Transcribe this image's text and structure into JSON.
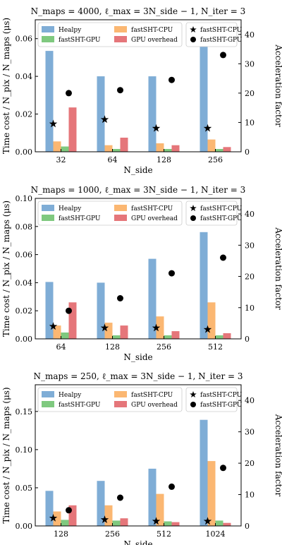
{
  "colors": {
    "healpy": "#7fadd6",
    "fastsht_cpu": "#fbb772",
    "fastsht_gpu": "#7fc97f",
    "gpu_overhead": "#e5767a",
    "marker": "#000000"
  },
  "chart_data": [
    {
      "type": "bar",
      "title": "N_maps = 4000, ℓ_max = 3N_side − 1, N_iter = 3",
      "xlabel": "N_side",
      "ylabel": "Time cost / N_pix / N_maps (μs)",
      "y2label": "Acceleration factor",
      "categories": [
        "32",
        "64",
        "128",
        "256"
      ],
      "ylim": [
        0,
        0.07
      ],
      "yticks": [
        "0.00",
        "0.02",
        "0.04",
        "0.06"
      ],
      "y2lim": [
        0,
        45
      ],
      "y2ticks": [
        "0",
        "10",
        "20",
        "30",
        "40"
      ],
      "series": [
        {
          "name": "Healpy",
          "values": [
            0.0535,
            0.04,
            0.04,
            0.057
          ]
        },
        {
          "name": "fastSHT-CPU",
          "values": [
            0.0055,
            0.0035,
            0.0045,
            0.0065
          ]
        },
        {
          "name": "fastSHT-GPU",
          "values": [
            0.0028,
            0.0015,
            0.0015,
            0.0015
          ]
        },
        {
          "name": "GPU overhead",
          "values": [
            0.0235,
            0.0075,
            0.0035,
            0.0025
          ]
        }
      ],
      "markers": [
        {
          "name": "fastSHT-CPU",
          "symbol": "star",
          "values": [
            9.5,
            11,
            8,
            8
          ]
        },
        {
          "name": "fastSHT-GPU",
          "symbol": "circle",
          "values": [
            20,
            21,
            24.5,
            33
          ]
        }
      ],
      "grid": false,
      "legend": "top"
    },
    {
      "type": "bar",
      "title": "N_maps = 1000, ℓ_max = 3N_side − 1, N_iter = 3",
      "xlabel": "N_side",
      "ylabel": "Time cost / N_pix / N_maps (μs)",
      "y2label": "Acceleration factor",
      "categories": [
        "64",
        "128",
        "256",
        "512"
      ],
      "ylim": [
        0,
        0.1
      ],
      "yticks": [
        "0.00",
        "0.02",
        "0.04",
        "0.06",
        "0.08",
        "0.10"
      ],
      "y2lim": [
        0,
        45
      ],
      "y2ticks": [
        "0",
        "10",
        "20",
        "30",
        "40"
      ],
      "series": [
        {
          "name": "Healpy",
          "values": [
            0.0405,
            0.04,
            0.057,
            0.076
          ]
        },
        {
          "name": "fastSHT-CPU",
          "values": [
            0.0095,
            0.0115,
            0.016,
            0.026
          ]
        },
        {
          "name": "fastSHT-GPU",
          "values": [
            0.0045,
            0.0025,
            0.0025,
            0.0025
          ]
        },
        {
          "name": "GPU overhead",
          "values": [
            0.026,
            0.0095,
            0.0055,
            0.004
          ]
        }
      ],
      "markers": [
        {
          "name": "fastSHT-CPU",
          "symbol": "star",
          "values": [
            4,
            3.5,
            3.5,
            3
          ]
        },
        {
          "name": "fastSHT-GPU",
          "symbol": "circle",
          "values": [
            9,
            13,
            21,
            26
          ]
        }
      ],
      "grid": false,
      "legend": "top"
    },
    {
      "type": "bar",
      "title": "N_maps = 250, ℓ_max = 3N_side − 1, N_iter = 3",
      "xlabel": "N_side",
      "ylabel": "Time cost / N_pix / N_maps (μs)",
      "y2label": "Acceleration factor",
      "categories": [
        "128",
        "256",
        "512",
        "1024"
      ],
      "ylim": [
        0,
        0.185
      ],
      "yticks": [
        "0.00",
        "0.05",
        "0.10",
        "0.15"
      ],
      "y2lim": [
        0,
        45
      ],
      "y2ticks": [
        "0",
        "10",
        "20",
        "30",
        "40"
      ],
      "series": [
        {
          "name": "Healpy",
          "values": [
            0.046,
            0.059,
            0.075,
            0.139
          ]
        },
        {
          "name": "fastSHT-CPU",
          "values": [
            0.019,
            0.027,
            0.042,
            0.085
          ]
        },
        {
          "name": "fastSHT-GPU",
          "values": [
            0.008,
            0.007,
            0.006,
            0.007
          ]
        },
        {
          "name": "GPU overhead",
          "values": [
            0.027,
            0.01,
            0.005,
            0.004
          ]
        }
      ],
      "markers": [
        {
          "name": "fastSHT-CPU",
          "symbol": "star",
          "values": [
            2.5,
            2,
            1.5,
            1.5
          ]
        },
        {
          "name": "fastSHT-GPU",
          "symbol": "circle",
          "values": [
            5,
            9,
            12.5,
            18.5
          ]
        }
      ],
      "grid": false,
      "legend": "top"
    }
  ]
}
